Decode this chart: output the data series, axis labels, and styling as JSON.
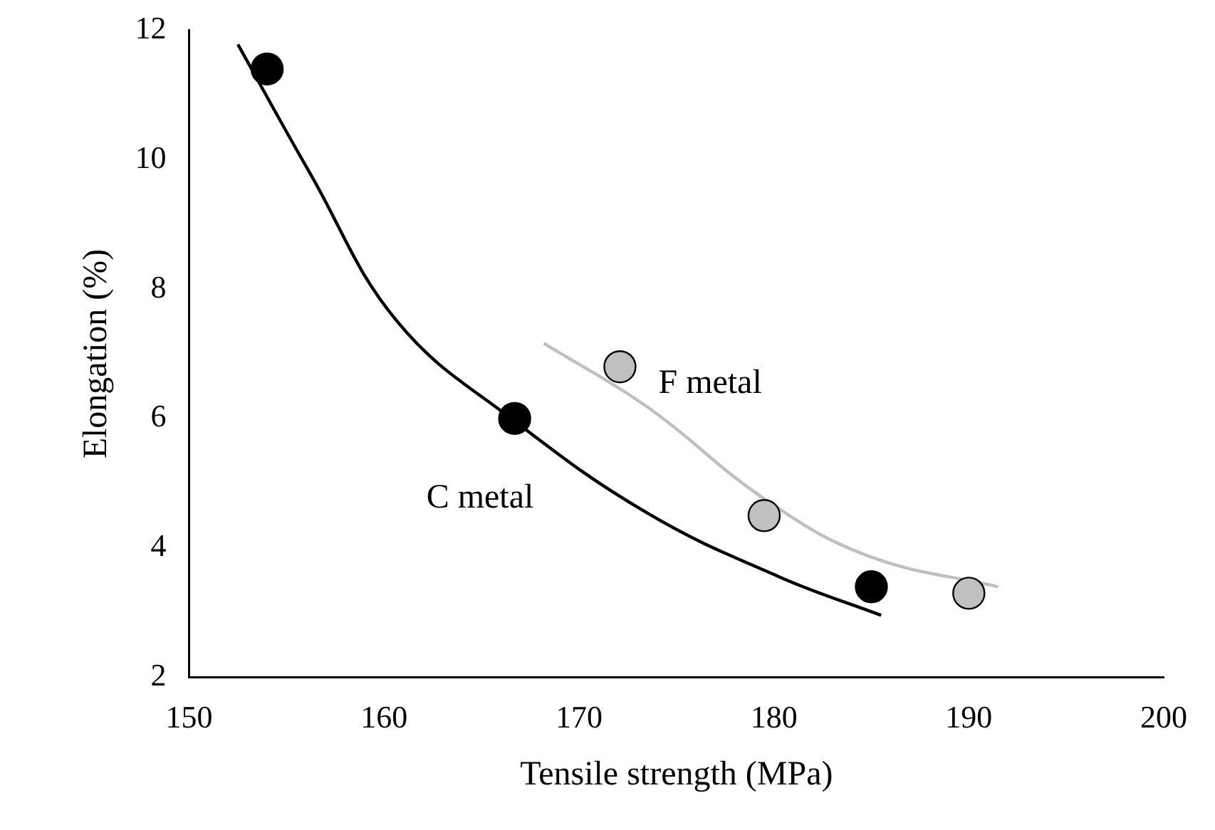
{
  "chart_data": {
    "type": "scatter",
    "xlabel": "Tensile strength (MPa)",
    "ylabel": "Elongation (%)",
    "xlim": [
      150,
      200
    ],
    "xticks": [
      150,
      160,
      170,
      180,
      190,
      200
    ],
    "ylim": [
      2,
      12
    ],
    "yticks": [
      2,
      4,
      6,
      8,
      10,
      12
    ],
    "grid": false,
    "legend": false,
    "marker": "circle",
    "series": [
      {
        "name": "C metal",
        "color": "#000000",
        "x": [
          154.0,
          166.7,
          185.0
        ],
        "values": [
          11.4,
          6.0,
          3.4
        ]
      },
      {
        "name": "F metal",
        "color": "#c0c0c0",
        "x": [
          172.1,
          179.5,
          190.0
        ],
        "values": [
          6.8,
          4.5,
          3.3
        ]
      },
      {
        "type": "line",
        "marker": "none",
        "color": "#000000",
        "x": [
          152.5,
          156.2,
          160.7,
          166.7,
          173.5,
          180.3,
          185.5
        ],
        "values": [
          11.78,
          9.79,
          7.49,
          5.96,
          4.54,
          3.55,
          2.96
        ]
      },
      {
        "type": "line",
        "marker": "none",
        "color": "#bfbfbf",
        "x": [
          168.2,
          173.5,
          179.5,
          184.8,
          191.5
        ],
        "values": [
          7.16,
          6.18,
          4.76,
          3.88,
          3.4
        ]
      }
    ]
  }
}
